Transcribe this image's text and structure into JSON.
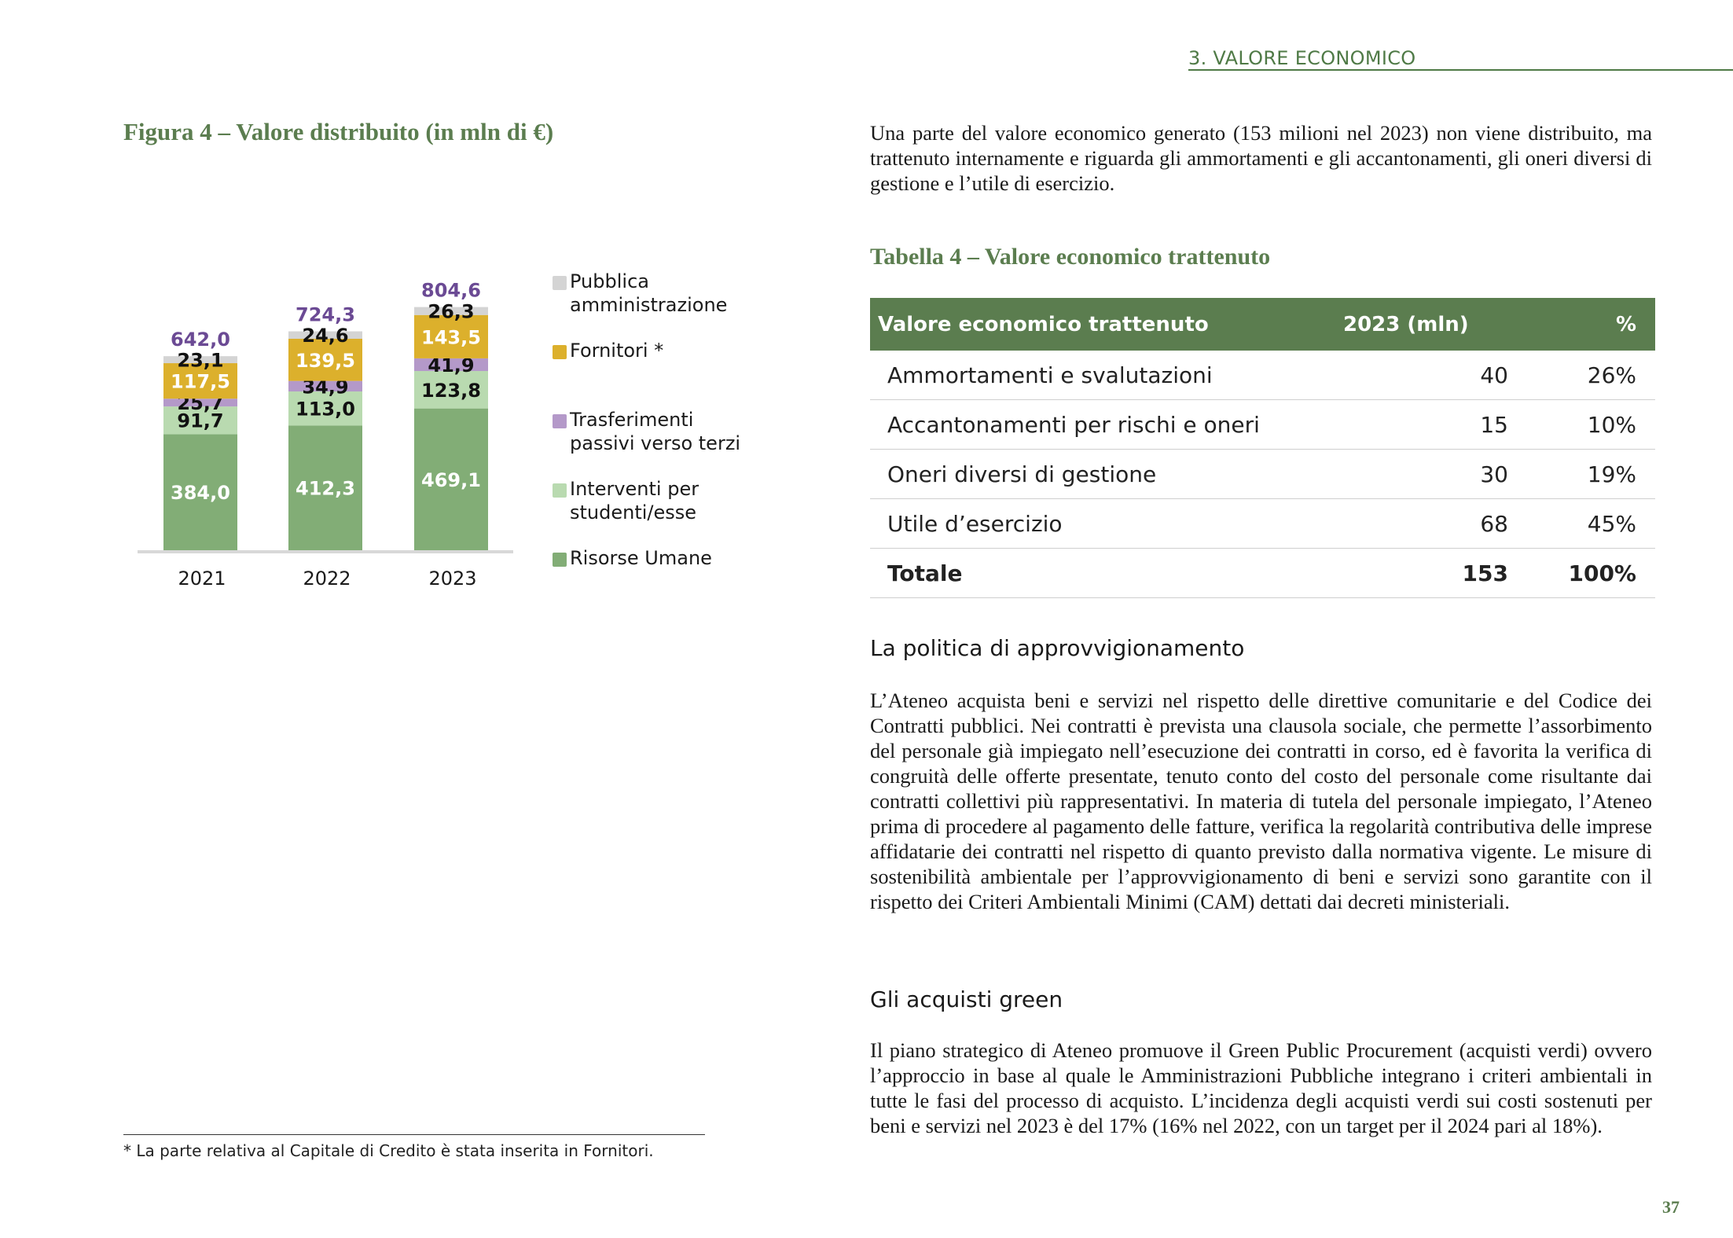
{
  "header": {
    "section": "3. VALORE ECONOMICO"
  },
  "figure": {
    "title": "Figura 4 – Valore distribuito (in mln di €)",
    "footnote": "* La parte relativa al Capitale di Credito è stata inserita in Fornitori."
  },
  "chart_data": {
    "type": "bar",
    "stacked": true,
    "title": "Figura 4 – Valore distribuito (in mln di €)",
    "categories": [
      "2021",
      "2022",
      "2023"
    ],
    "series": [
      {
        "name": "Risorse Umane",
        "values": [
          384.0,
          412.3,
          469.1
        ],
        "labels": [
          "384,0",
          "412,3",
          "469,1"
        ],
        "color": "#82ad76",
        "label_color": "#ffffff"
      },
      {
        "name": "Interventi per studenti/esse",
        "values": [
          91.7,
          113.0,
          123.8
        ],
        "labels": [
          "91,7",
          "113,0",
          "123,8"
        ],
        "color": "#b9dab0",
        "label_color": "#111111"
      },
      {
        "name": "Trasferimenti passivi verso terzi",
        "values": [
          25.7,
          34.9,
          41.9
        ],
        "labels": [
          "25,7",
          "34,9",
          "41,9"
        ],
        "color": "#b499c9",
        "label_color": "#111111"
      },
      {
        "name": "Fornitori *",
        "values": [
          117.5,
          139.5,
          143.5
        ],
        "labels": [
          "117,5",
          "139,5",
          "143,5"
        ],
        "color": "#dcb02c",
        "label_color": "#ffffff"
      },
      {
        "name": "Pubblica amministrazione",
        "values": [
          23.1,
          24.6,
          26.3
        ],
        "labels": [
          "23,1",
          "24,6",
          "26,3"
        ],
        "color": "#d4d4d4",
        "label_color": "#111111"
      }
    ],
    "totals": [
      642.0,
      724.3,
      804.6
    ],
    "total_labels": [
      "642,0",
      "724,3",
      "804,6"
    ],
    "total_label_color": "#6b4a94",
    "legend": [
      {
        "label": "Pubblica\namministrazione",
        "color": "#d4d4d4"
      },
      {
        "label": "Fornitori *",
        "color": "#dcb02c"
      },
      {
        "label": "Trasferimenti\npassivi verso terzi",
        "color": "#b499c9"
      },
      {
        "label": "Interventi per\nstudenti/esse",
        "color": "#b9dab0"
      },
      {
        "label": "Risorse Umane",
        "color": "#82ad76"
      }
    ],
    "grid": false,
    "legend_position": "right"
  },
  "intro": "Una parte del valore economico generato (153 milioni nel 2023) non viene distribuito, ma trattenuto internamente e riguarda gli ammortamenti e gli accantonamenti, gli oneri diversi di gestione e l’utile di esercizio.",
  "table": {
    "title": "Tabella 4 – Valore economico trattenuto",
    "headers": [
      "Valore economico trattenuto",
      "2023 (mln)",
      "%"
    ],
    "rows": [
      [
        "Ammortamenti e svalutazioni",
        "40",
        "26%"
      ],
      [
        "Accantonamenti per rischi e oneri",
        "15",
        "10%"
      ],
      [
        "Oneri diversi di gestione",
        "30",
        "19%"
      ],
      [
        "Utile d’esercizio",
        "68",
        "45%"
      ]
    ],
    "total": [
      "Totale",
      "153",
      "100%"
    ],
    "header_color": "#5b7d4f"
  },
  "procurement": {
    "heading": "La politica di approvvigionamento",
    "text": "L’Ateneo acquista beni e servizi nel rispetto delle direttive comunitarie e del Codice dei Contratti pubblici. Nei contratti è prevista una clausola sociale, che permette l’assorbimento del personale già impiegato nell’esecuzione dei contratti in corso, ed è favorita la verifica di congruità delle offerte presentate, tenuto conto del costo del personale come risultante dai contratti collettivi più rappresentativi. In materia di tutela del personale impiegato, l’Ateneo prima di procedere al pagamento delle fatture, verifica la regolarità contributiva delle imprese affidatarie dei contratti nel rispetto di quanto previsto dalla normativa vigente. Le misure di sostenibilità ambientale per l’approvvigionamento di beni e servizi sono garantite con il rispetto dei Criteri Ambientali Minimi (CAM) dettati dai decreti ministeriali."
  },
  "green": {
    "heading": "Gli acquisti green",
    "text": "Il piano strategico di Ateneo promuove il Green Public Procurement (acquisti verdi) ovvero l’approccio in base al quale le Amministrazioni Pubbliche integrano i criteri ambientali in tutte le fasi del processo di acquisto.  L’incidenza degli acquisti verdi sui costi sostenuti per beni e servizi nel 2023 è del 17% (16% nel 2022, con un target per il 2024 pari al 18%)."
  },
  "page_number": "37",
  "colors": {
    "accent": "#5b7d4f"
  }
}
